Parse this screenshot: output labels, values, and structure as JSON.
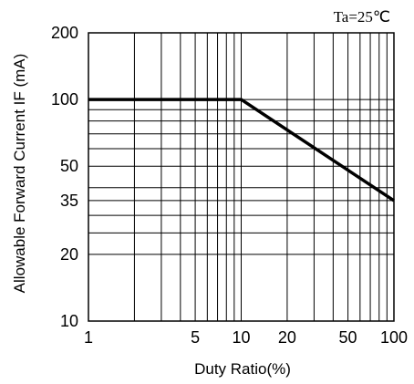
{
  "chart_data": {
    "type": "line",
    "xlabel": "Duty Ratio(%)",
    "ylabel": "Allowable Forward Current IF (mA)",
    "annotation": "Ta=25℃",
    "x_scale": "log",
    "y_scale": "log",
    "xlim": [
      1,
      100
    ],
    "ylim": [
      10,
      200
    ],
    "x_ticks": [
      1,
      5,
      10,
      20,
      50,
      100
    ],
    "x_tick_labels": [
      "1",
      "5",
      "10",
      "20",
      "50",
      "100"
    ],
    "y_ticks": [
      10,
      20,
      35,
      50,
      100,
      200
    ],
    "y_tick_labels": [
      "10",
      "20",
      "35",
      "50",
      "100",
      "200"
    ],
    "x_gridlines": [
      1,
      2,
      3,
      4,
      5,
      6,
      7,
      8,
      9,
      10,
      20,
      30,
      40,
      50,
      60,
      70,
      80,
      90,
      100
    ],
    "y_gridlines": [
      10,
      20,
      25,
      30,
      35,
      40,
      50,
      60,
      70,
      80,
      90,
      100,
      200
    ],
    "grid": true,
    "series": [
      {
        "x": [
          1,
          10,
          100
        ],
        "y": [
          100,
          100,
          35
        ],
        "color": "#000000"
      }
    ]
  }
}
